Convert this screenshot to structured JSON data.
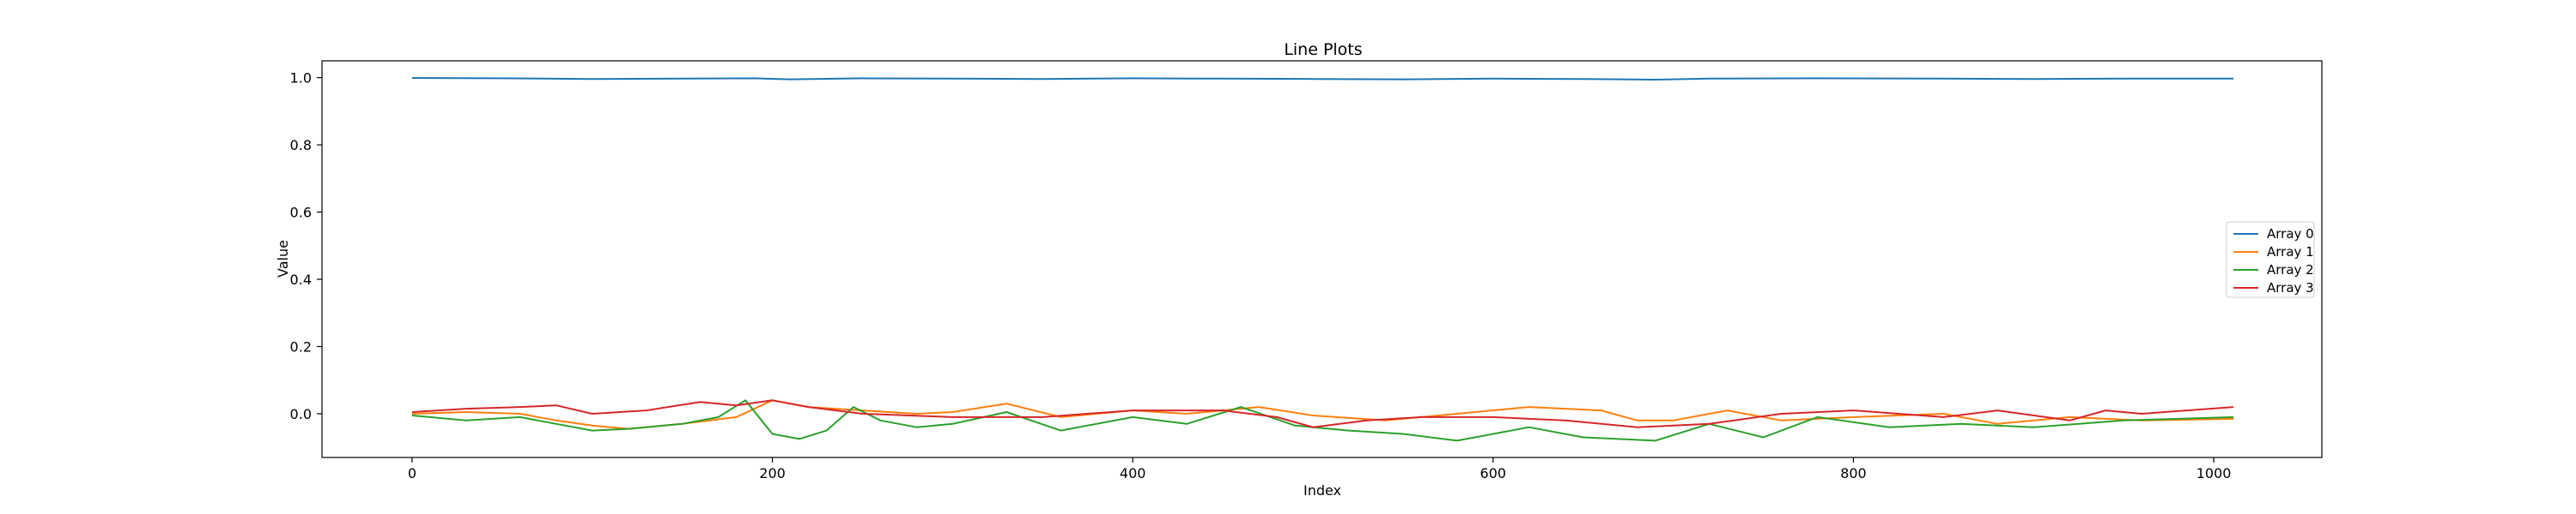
{
  "chart_data": {
    "type": "line",
    "title": "Line Plots",
    "xlabel": "Index",
    "ylabel": "Value",
    "xlim": [
      -50,
      1060
    ],
    "ylim": [
      -0.13,
      1.05
    ],
    "xticks": [
      0,
      200,
      400,
      600,
      800,
      1000
    ],
    "yticks": [
      0.0,
      0.2,
      0.4,
      0.6,
      0.8,
      1.0
    ],
    "xtick_labels": [
      "0",
      "200",
      "400",
      "600",
      "800",
      "1000"
    ],
    "ytick_labels": [
      "0.0",
      "0.2",
      "0.4",
      "0.6",
      "0.8",
      "1.0"
    ],
    "grid": false,
    "legend_position": "center-right",
    "series": [
      {
        "name": "Array 0",
        "color": "#1f77b4",
        "x": [
          0,
          50,
          100,
          150,
          190,
          210,
          250,
          300,
          350,
          400,
          450,
          500,
          550,
          600,
          650,
          690,
          720,
          780,
          850,
          900,
          950,
          1011
        ],
        "y": [
          0.999,
          0.998,
          0.996,
          0.997,
          0.998,
          0.995,
          0.998,
          0.997,
          0.996,
          0.998,
          0.997,
          0.996,
          0.995,
          0.997,
          0.996,
          0.994,
          0.997,
          0.998,
          0.997,
          0.996,
          0.997,
          0.997
        ]
      },
      {
        "name": "Array 1",
        "color": "#ff7f0e",
        "x": [
          0,
          30,
          60,
          80,
          100,
          120,
          150,
          180,
          200,
          220,
          250,
          280,
          300,
          330,
          360,
          400,
          430,
          470,
          500,
          540,
          580,
          620,
          660,
          680,
          700,
          730,
          760,
          800,
          850,
          880,
          920,
          960,
          1011
        ],
        "y": [
          0.0,
          0.005,
          0.0,
          -0.02,
          -0.035,
          -0.045,
          -0.03,
          -0.01,
          0.04,
          0.02,
          0.01,
          0.0,
          0.005,
          0.03,
          -0.01,
          0.01,
          0.0,
          0.02,
          -0.005,
          -0.02,
          0.0,
          0.02,
          0.01,
          -0.02,
          -0.02,
          0.01,
          -0.02,
          -0.01,
          0.0,
          -0.03,
          -0.01,
          -0.02,
          -0.015
        ]
      },
      {
        "name": "Array 2",
        "color": "#2ca02c",
        "x": [
          0,
          30,
          60,
          80,
          100,
          120,
          150,
          170,
          185,
          200,
          215,
          230,
          245,
          260,
          280,
          300,
          330,
          360,
          400,
          430,
          460,
          490,
          520,
          550,
          580,
          620,
          650,
          690,
          720,
          750,
          780,
          820,
          860,
          900,
          950,
          1011
        ],
        "y": [
          -0.005,
          -0.02,
          -0.01,
          -0.03,
          -0.05,
          -0.045,
          -0.03,
          -0.01,
          0.04,
          -0.06,
          -0.075,
          -0.05,
          0.02,
          -0.02,
          -0.04,
          -0.03,
          0.005,
          -0.05,
          -0.01,
          -0.03,
          0.02,
          -0.035,
          -0.05,
          -0.06,
          -0.08,
          -0.04,
          -0.07,
          -0.08,
          -0.03,
          -0.07,
          -0.01,
          -0.04,
          -0.03,
          -0.04,
          -0.02,
          -0.01
        ]
      },
      {
        "name": "Array 3",
        "color": "#d62728",
        "x": [
          0,
          30,
          60,
          80,
          100,
          130,
          160,
          180,
          200,
          220,
          250,
          300,
          350,
          400,
          450,
          480,
          500,
          530,
          560,
          600,
          640,
          680,
          720,
          760,
          800,
          850,
          880,
          920,
          940,
          960,
          1011
        ],
        "y": [
          0.005,
          0.015,
          0.02,
          0.025,
          0.0,
          0.01,
          0.035,
          0.025,
          0.04,
          0.02,
          0.0,
          -0.01,
          -0.01,
          0.01,
          0.01,
          -0.01,
          -0.04,
          -0.02,
          -0.01,
          -0.01,
          -0.02,
          -0.04,
          -0.03,
          0.0,
          0.01,
          -0.01,
          0.01,
          -0.02,
          0.01,
          0.0,
          0.02
        ]
      }
    ]
  }
}
